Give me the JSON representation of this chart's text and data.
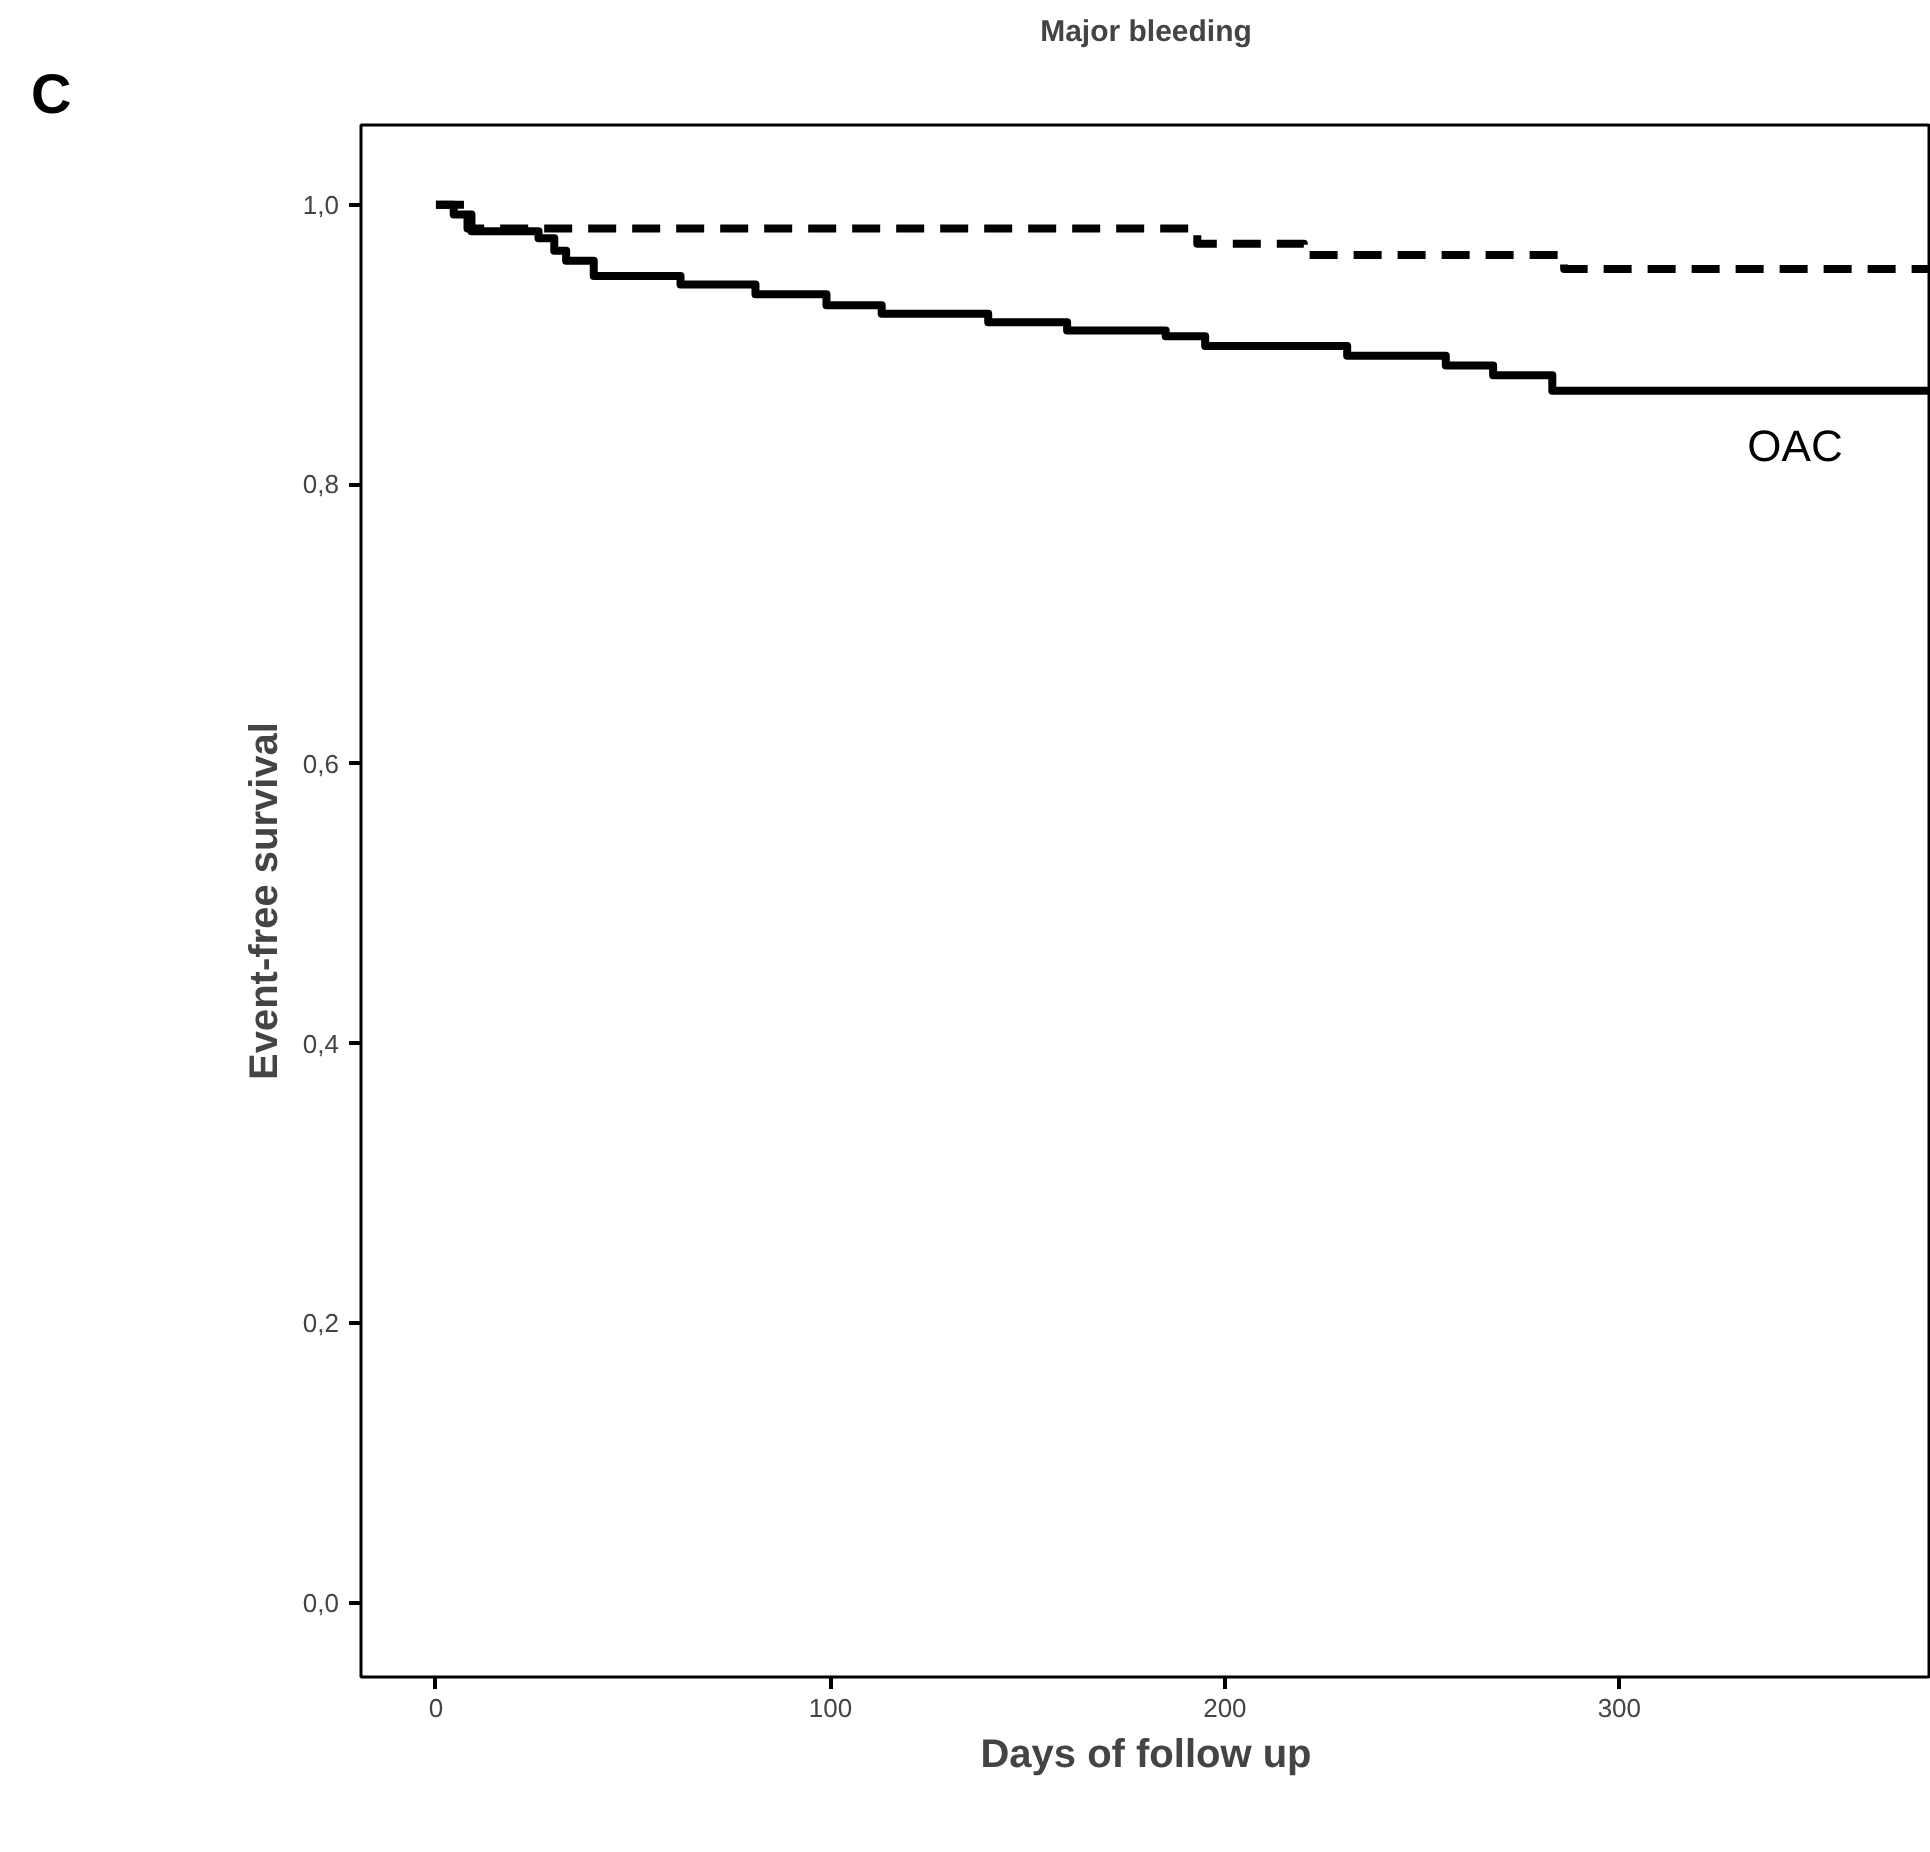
{
  "chart_data": {
    "type": "step",
    "title": "Major bleeding",
    "xlabel": "Days of follow up",
    "ylabel": "Event-free survival",
    "annotations": [
      "C",
      "OAC"
    ],
    "series": [
      {
        "color": "#000000",
        "line_style": "solid",
        "x": [
          0,
          4.5,
          9,
          26,
          30,
          33,
          40,
          62,
          81,
          99,
          113,
          140,
          160,
          185,
          195,
          231,
          256,
          268,
          283,
          379
        ],
        "values": [
          1.0,
          0.993,
          0.981,
          0.976,
          0.967,
          0.96,
          0.949,
          0.943,
          0.936,
          0.928,
          0.922,
          0.916,
          0.91,
          0.906,
          0.899,
          0.892,
          0.885,
          0.878,
          0.867,
          0.867
        ]
      },
      {
        "color": "#000000",
        "line_style": "dashed",
        "x": [
          0,
          8,
          193,
          220,
          286,
          379
        ],
        "values": [
          1.0,
          0.983,
          0.972,
          0.964,
          0.954,
          0.954
        ]
      }
    ],
    "xlim": [
      -19,
      379
    ],
    "ylim": [
      -0.053,
      1.057
    ],
    "xticks": [
      0,
      100,
      200,
      300
    ],
    "yticks": [
      {
        "value": 0,
        "label": "0,0"
      },
      {
        "value": 0.2,
        "label": "0,2"
      },
      {
        "value": 0.4,
        "label": "0,4"
      },
      {
        "value": 0.6,
        "label": "0,6"
      },
      {
        "value": 0.8,
        "label": "0,8"
      },
      {
        "value": 1.0,
        "label": "1,0"
      }
    ],
    "grid": false,
    "marker": "none"
  }
}
